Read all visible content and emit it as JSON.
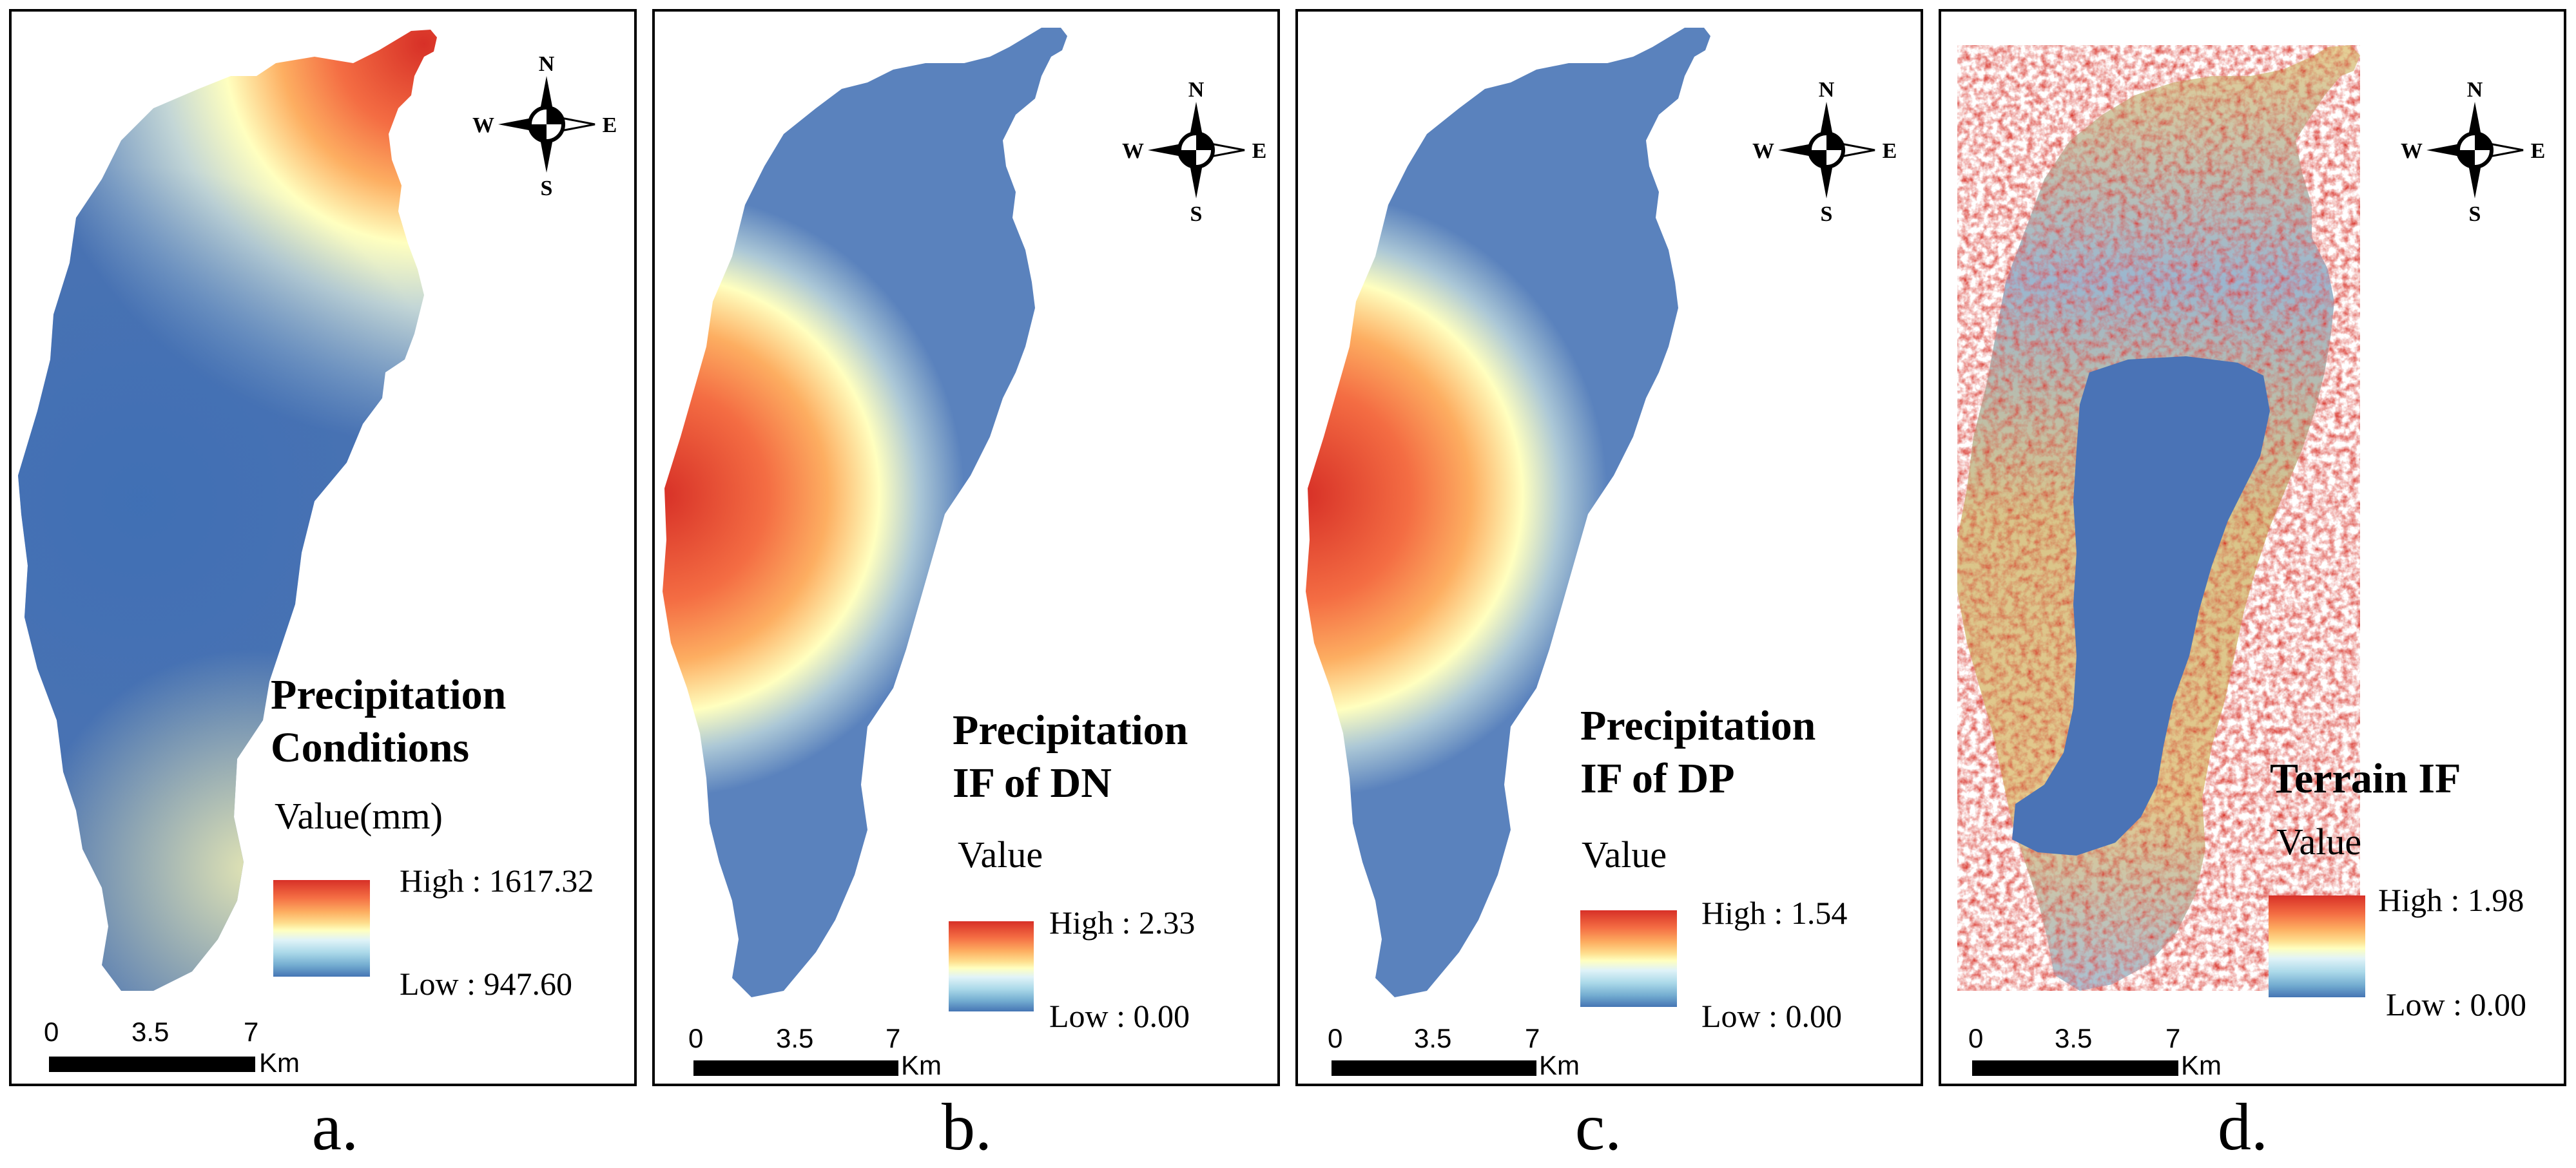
{
  "panels": [
    {
      "id": "a",
      "caption": "a.",
      "title_line1": "Precipitation",
      "title_line2": "Conditions",
      "value_label": "Value(mm)",
      "high_label": "High : 1617.32",
      "low_label": "Low : 947.60",
      "high_value": 1617.32,
      "low_value": 947.6,
      "scale_ticks": [
        "0",
        "3.5",
        "7"
      ],
      "scale_unit": "Km",
      "compass": {
        "n": "N",
        "s": "S",
        "e": "E",
        "w": "W"
      }
    },
    {
      "id": "b",
      "caption": "b.",
      "title_line1": "Precipitation",
      "title_line2": "IF of DN",
      "value_label": "Value",
      "high_label": "High : 2.33",
      "low_label": "Low : 0.00",
      "high_value": 2.33,
      "low_value": 0.0,
      "scale_ticks": [
        "0",
        "3.5",
        "7"
      ],
      "scale_unit": "Km",
      "compass": {
        "n": "N",
        "s": "S",
        "e": "E",
        "w": "W"
      }
    },
    {
      "id": "c",
      "caption": "c.",
      "title_line1": "Precipitation",
      "title_line2": "IF of DP",
      "value_label": "Value",
      "high_label": "High : 1.54",
      "low_label": "Low : 0.00",
      "high_value": 1.54,
      "low_value": 0.0,
      "scale_ticks": [
        "0",
        "3.5",
        "7"
      ],
      "scale_unit": "Km",
      "compass": {
        "n": "N",
        "s": "S",
        "e": "E",
        "w": "W"
      }
    },
    {
      "id": "d",
      "caption": "d.",
      "title_line1": "Terrain IF",
      "title_line2": "",
      "value_label": "Value",
      "high_label": "High : 1.98",
      "low_label": "Low : 0.00",
      "high_value": 1.98,
      "low_value": 0.0,
      "scale_ticks": [
        "0",
        "3.5",
        "7"
      ],
      "scale_unit": "Km",
      "compass": {
        "n": "N",
        "s": "S",
        "e": "E",
        "w": "W"
      }
    }
  ],
  "colors": {
    "high": "#d73027",
    "mid": "#ffffbf",
    "low": "#4575b4",
    "border": "#000000"
  }
}
